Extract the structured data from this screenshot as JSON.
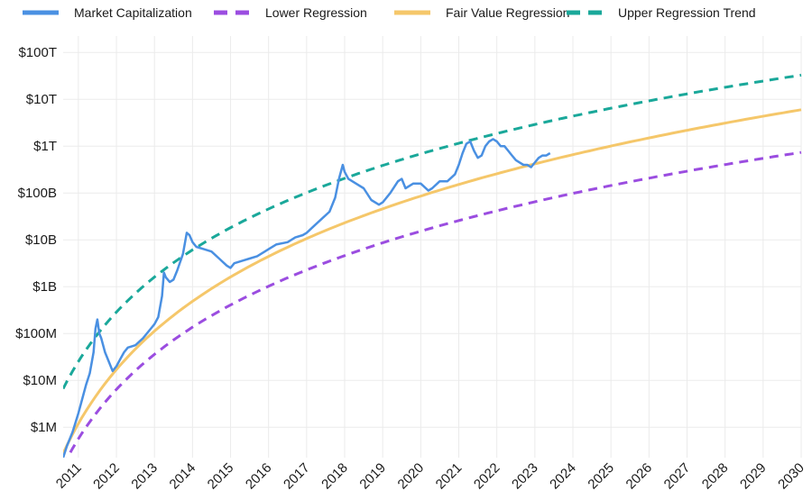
{
  "chart_data": {
    "type": "line",
    "title": "",
    "xlabel": "",
    "ylabel": "",
    "y_scale": "log",
    "xlim": [
      2010.6,
      2030.0
    ],
    "ylim_log10": [
      5.35,
      14.35
    ],
    "x_ticks": [
      2011,
      2012,
      2013,
      2014,
      2015,
      2016,
      2017,
      2018,
      2019,
      2020,
      2021,
      2022,
      2023,
      2024,
      2025,
      2026,
      2027,
      2028,
      2029,
      2030
    ],
    "x_tick_labels": [
      "2011",
      "2012",
      "2013",
      "2014",
      "2015",
      "2016",
      "2017",
      "2018",
      "2019",
      "2020",
      "2021",
      "2022",
      "2023",
      "2024",
      "2025",
      "2026",
      "2027",
      "2028",
      "2029",
      "2030"
    ],
    "y_ticks_log10": [
      6,
      7,
      8,
      9,
      10,
      11,
      12,
      13,
      14
    ],
    "y_tick_labels": [
      "$1M",
      "$10M",
      "$100M",
      "$1B",
      "$10B",
      "$100B",
      "$1T",
      "$10T",
      "$100T"
    ],
    "grid": true,
    "legend_position": "top",
    "series": [
      {
        "name": "Market Capitalization",
        "style": "solid",
        "color": "#4a90e2",
        "x": [
          2010.6,
          2010.7,
          2010.85,
          2011.0,
          2011.1,
          2011.2,
          2011.3,
          2011.4,
          2011.45,
          2011.5,
          2011.55,
          2011.6,
          2011.7,
          2011.8,
          2011.9,
          2012.0,
          2012.1,
          2012.2,
          2012.3,
          2012.5,
          2012.7,
          2012.9,
          2013.0,
          2013.1,
          2013.2,
          2013.25,
          2013.3,
          2013.4,
          2013.5,
          2013.6,
          2013.75,
          2013.85,
          2013.92,
          2014.0,
          2014.1,
          2014.3,
          2014.5,
          2014.7,
          2014.9,
          2015.0,
          2015.1,
          2015.3,
          2015.5,
          2015.7,
          2015.9,
          2016.0,
          2016.2,
          2016.5,
          2016.7,
          2016.9,
          2017.0,
          2017.2,
          2017.4,
          2017.6,
          2017.75,
          2017.85,
          2017.95,
          2018.0,
          2018.1,
          2018.3,
          2018.5,
          2018.7,
          2018.9,
          2019.0,
          2019.2,
          2019.4,
          2019.5,
          2019.6,
          2019.8,
          2020.0,
          2020.2,
          2020.3,
          2020.5,
          2020.7,
          2020.9,
          2021.0,
          2021.1,
          2021.2,
          2021.3,
          2021.4,
          2021.5,
          2021.6,
          2021.7,
          2021.8,
          2021.9,
          2022.0,
          2022.1,
          2022.2,
          2022.3,
          2022.4,
          2022.5,
          2022.6,
          2022.7,
          2022.8,
          2022.9,
          2023.0,
          2023.1,
          2023.2,
          2023.3,
          2023.4
        ],
        "log10_values": [
          5.35,
          5.6,
          5.9,
          6.3,
          6.6,
          6.9,
          7.15,
          7.6,
          8.1,
          8.3,
          8.0,
          7.9,
          7.6,
          7.4,
          7.2,
          7.3,
          7.45,
          7.6,
          7.7,
          7.75,
          7.9,
          8.1,
          8.2,
          8.35,
          8.8,
          9.3,
          9.2,
          9.1,
          9.15,
          9.35,
          9.7,
          10.15,
          10.1,
          9.95,
          9.85,
          9.8,
          9.75,
          9.6,
          9.45,
          9.4,
          9.5,
          9.55,
          9.6,
          9.65,
          9.75,
          9.8,
          9.9,
          9.95,
          10.05,
          10.1,
          10.15,
          10.3,
          10.45,
          10.6,
          10.9,
          11.3,
          11.6,
          11.45,
          11.3,
          11.2,
          11.1,
          10.85,
          10.75,
          10.8,
          11.0,
          11.25,
          11.3,
          11.1,
          11.2,
          11.2,
          11.05,
          11.1,
          11.25,
          11.25,
          11.4,
          11.6,
          11.85,
          12.05,
          12.1,
          11.9,
          11.75,
          11.8,
          12.0,
          12.1,
          12.15,
          12.1,
          12.0,
          12.0,
          11.9,
          11.8,
          11.7,
          11.65,
          11.6,
          11.6,
          11.55,
          11.65,
          11.75,
          11.8,
          11.8,
          11.85
        ]
      },
      {
        "name": "Lower Regression",
        "style": "dashed",
        "color": "#9b4de0",
        "x": [
          2010.6,
          2030.0
        ],
        "x_log_origin": 2009.0,
        "log_fit": {
          "a": 3.95,
          "b": 2.6
        }
      },
      {
        "name": "Fair Value Regression",
        "style": "solid",
        "color": "#f5c76a",
        "x": [
          2010.6,
          2030.0
        ],
        "x_log_origin": 2009.0,
        "log_fit": {
          "a": 4.1,
          "b": 2.85
        }
      },
      {
        "name": "Upper Regression Trend",
        "style": "dashed",
        "color": "#1aa89a",
        "x": [
          2010.6,
          2030.0
        ],
        "x_log_origin": 2009.0,
        "log_fit": {
          "a": 5.6,
          "b": 2.6
        }
      }
    ]
  },
  "legend": {
    "items": [
      {
        "label": "Market Capitalization",
        "color": "#4a90e2",
        "style": "solid"
      },
      {
        "label": "Lower Regression",
        "color": "#9b4de0",
        "style": "dashed"
      },
      {
        "label": "Fair Value Regression",
        "color": "#f5c76a",
        "style": "solid"
      },
      {
        "label": "Upper Regression Trend",
        "color": "#1aa89a",
        "style": "dashed"
      }
    ]
  }
}
